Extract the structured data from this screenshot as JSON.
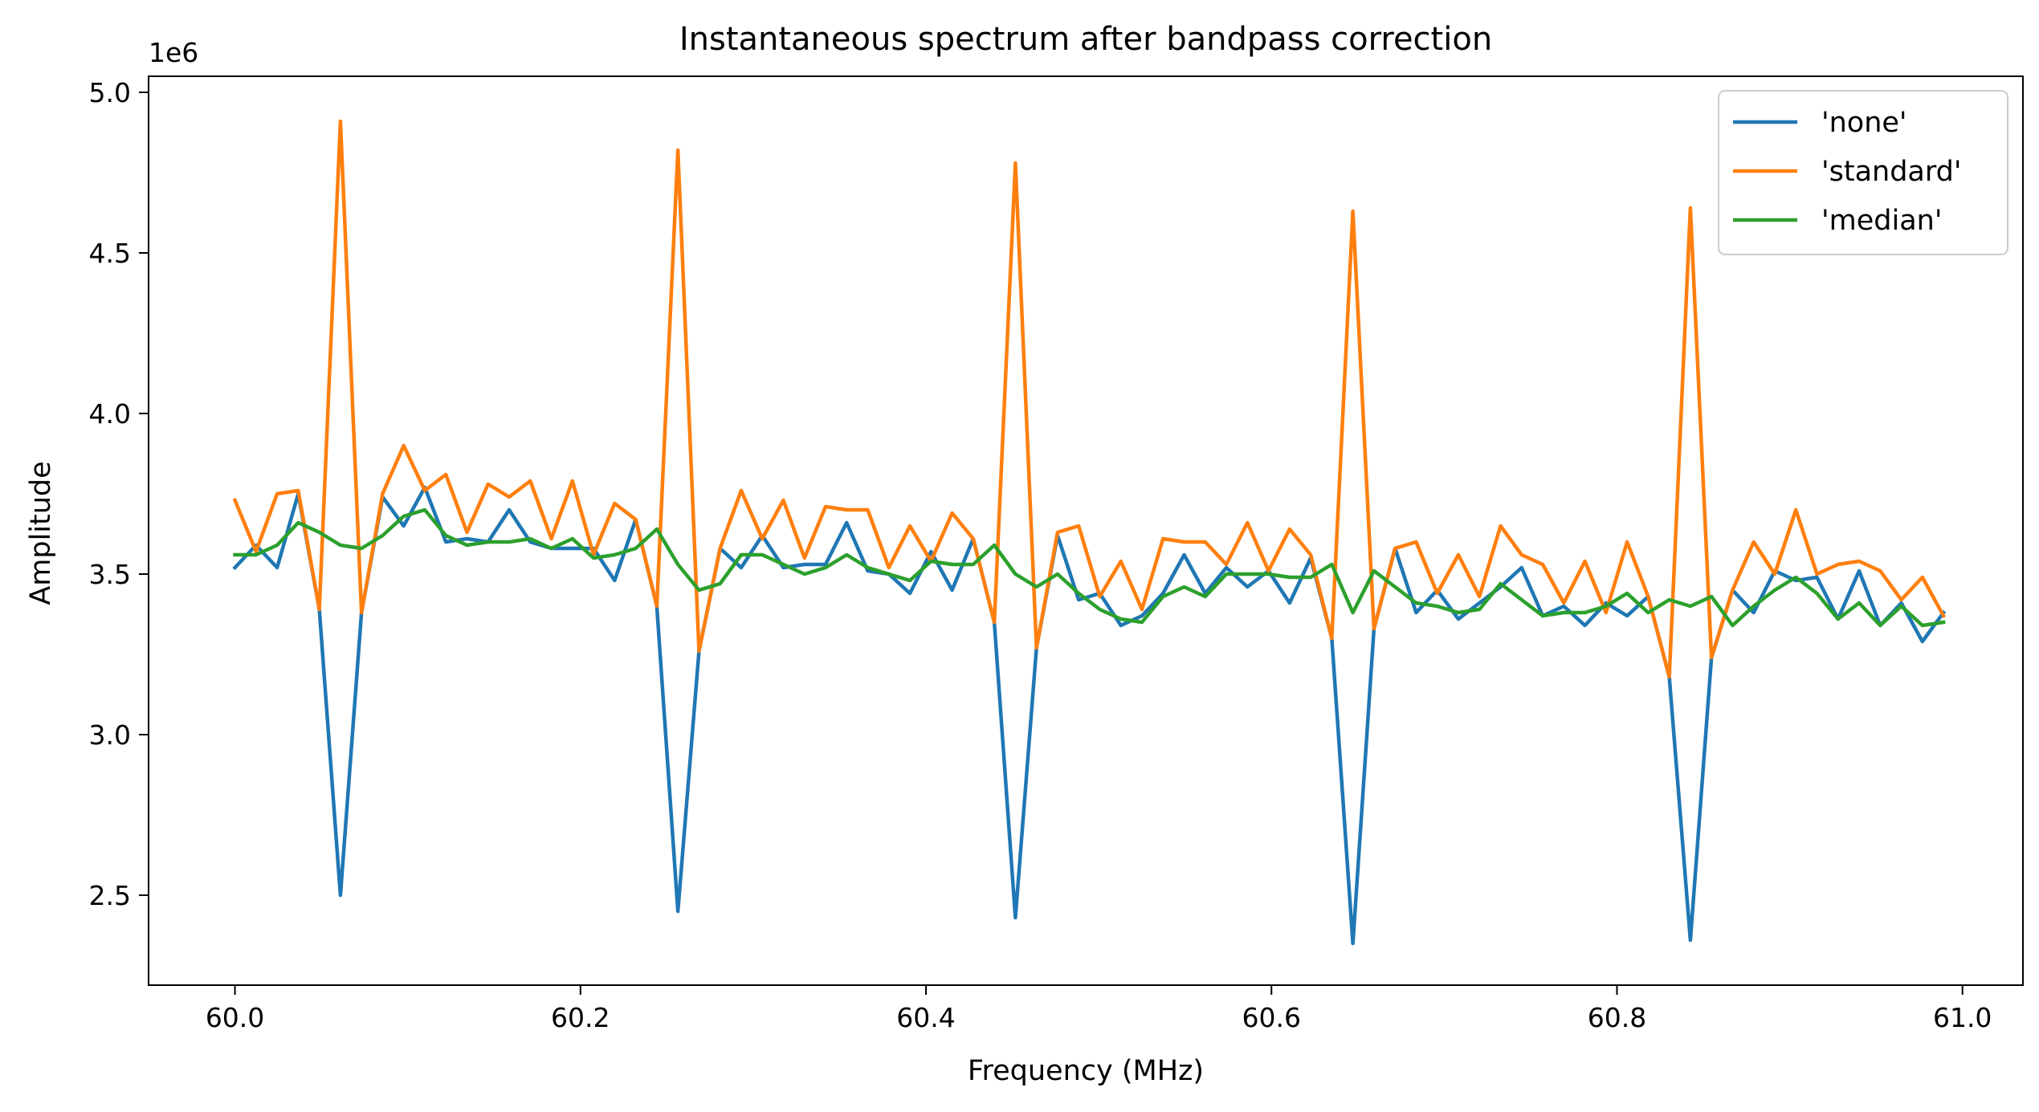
{
  "chart_data": {
    "type": "line",
    "title": "Instantaneous spectrum after bandpass correction",
    "xlabel": "Frequency (MHz)",
    "ylabel": "Amplitude",
    "offset_text": "1e6",
    "xlim": [
      59.95,
      61.035
    ],
    "ylim": [
      2.22,
      5.05
    ],
    "xticks": [
      60.0,
      60.2,
      60.4,
      60.6,
      60.8,
      61.0
    ],
    "xtick_labels": [
      "60.0",
      "60.2",
      "60.4",
      "60.6",
      "60.8",
      "61.0"
    ],
    "yticks": [
      2.5,
      3.0,
      3.5,
      4.0,
      4.5,
      5.0
    ],
    "ytick_labels": [
      "2.5",
      "3.0",
      "3.5",
      "4.0",
      "4.5",
      "5.0"
    ],
    "y_unit_multiplier": 1000000,
    "grid": false,
    "legend_position": "upper right",
    "x_start": 60.0,
    "x_step": 0.01221,
    "series": [
      {
        "name": "'none'",
        "color": "#1f77b4",
        "values": [
          3.52,
          3.59,
          3.52,
          3.75,
          3.39,
          2.5,
          3.38,
          3.74,
          3.65,
          3.77,
          3.6,
          3.61,
          3.6,
          3.7,
          3.6,
          3.58,
          3.58,
          3.58,
          3.48,
          3.67,
          3.4,
          2.45,
          3.26,
          3.58,
          3.52,
          3.62,
          3.52,
          3.53,
          3.53,
          3.66,
          3.51,
          3.5,
          3.44,
          3.57,
          3.45,
          3.61,
          3.35,
          2.43,
          3.27,
          3.62,
          3.42,
          3.44,
          3.34,
          3.37,
          3.44,
          3.56,
          3.44,
          3.52,
          3.46,
          3.51,
          3.41,
          3.55,
          3.3,
          2.35,
          3.33,
          3.58,
          3.38,
          3.45,
          3.36,
          3.41,
          3.46,
          3.52,
          3.37,
          3.4,
          3.34,
          3.41,
          3.37,
          3.43,
          3.18,
          2.36,
          3.24,
          3.45,
          3.38,
          3.51,
          3.48,
          3.49,
          3.36,
          3.51,
          3.34,
          3.41,
          3.29,
          3.38
        ]
      },
      {
        "name": "'standard'",
        "color": "#ff7f0e",
        "values": [
          3.73,
          3.57,
          3.75,
          3.76,
          3.39,
          4.91,
          3.38,
          3.75,
          3.9,
          3.76,
          3.81,
          3.63,
          3.78,
          3.74,
          3.79,
          3.61,
          3.79,
          3.56,
          3.72,
          3.67,
          3.4,
          4.82,
          3.26,
          3.58,
          3.76,
          3.61,
          3.73,
          3.55,
          3.71,
          3.7,
          3.7,
          3.52,
          3.65,
          3.54,
          3.69,
          3.61,
          3.35,
          4.78,
          3.27,
          3.63,
          3.65,
          3.43,
          3.54,
          3.39,
          3.61,
          3.6,
          3.6,
          3.53,
          3.66,
          3.51,
          3.64,
          3.56,
          3.3,
          4.63,
          3.33,
          3.58,
          3.6,
          3.44,
          3.56,
          3.43,
          3.65,
          3.56,
          3.53,
          3.41,
          3.54,
          3.38,
          3.6,
          3.43,
          3.18,
          4.64,
          3.24,
          3.45,
          3.6,
          3.5,
          3.7,
          3.5,
          3.53,
          3.54,
          3.51,
          3.42,
          3.49,
          3.37
        ]
      },
      {
        "name": "'median'",
        "color": "#2ca02c",
        "values": [
          3.56,
          3.56,
          3.59,
          3.66,
          3.63,
          3.59,
          3.58,
          3.62,
          3.68,
          3.7,
          3.62,
          3.59,
          3.6,
          3.6,
          3.61,
          3.58,
          3.61,
          3.55,
          3.56,
          3.58,
          3.64,
          3.53,
          3.45,
          3.47,
          3.56,
          3.56,
          3.53,
          3.5,
          3.52,
          3.56,
          3.52,
          3.5,
          3.48,
          3.54,
          3.53,
          3.53,
          3.59,
          3.5,
          3.46,
          3.5,
          3.44,
          3.39,
          3.36,
          3.35,
          3.43,
          3.46,
          3.43,
          3.5,
          3.5,
          3.5,
          3.49,
          3.49,
          3.53,
          3.38,
          3.51,
          3.46,
          3.41,
          3.4,
          3.38,
          3.39,
          3.47,
          3.42,
          3.37,
          3.38,
          3.38,
          3.4,
          3.44,
          3.38,
          3.42,
          3.4,
          3.43,
          3.34,
          3.4,
          3.45,
          3.49,
          3.44,
          3.36,
          3.41,
          3.34,
          3.4,
          3.34,
          3.35
        ]
      }
    ]
  }
}
